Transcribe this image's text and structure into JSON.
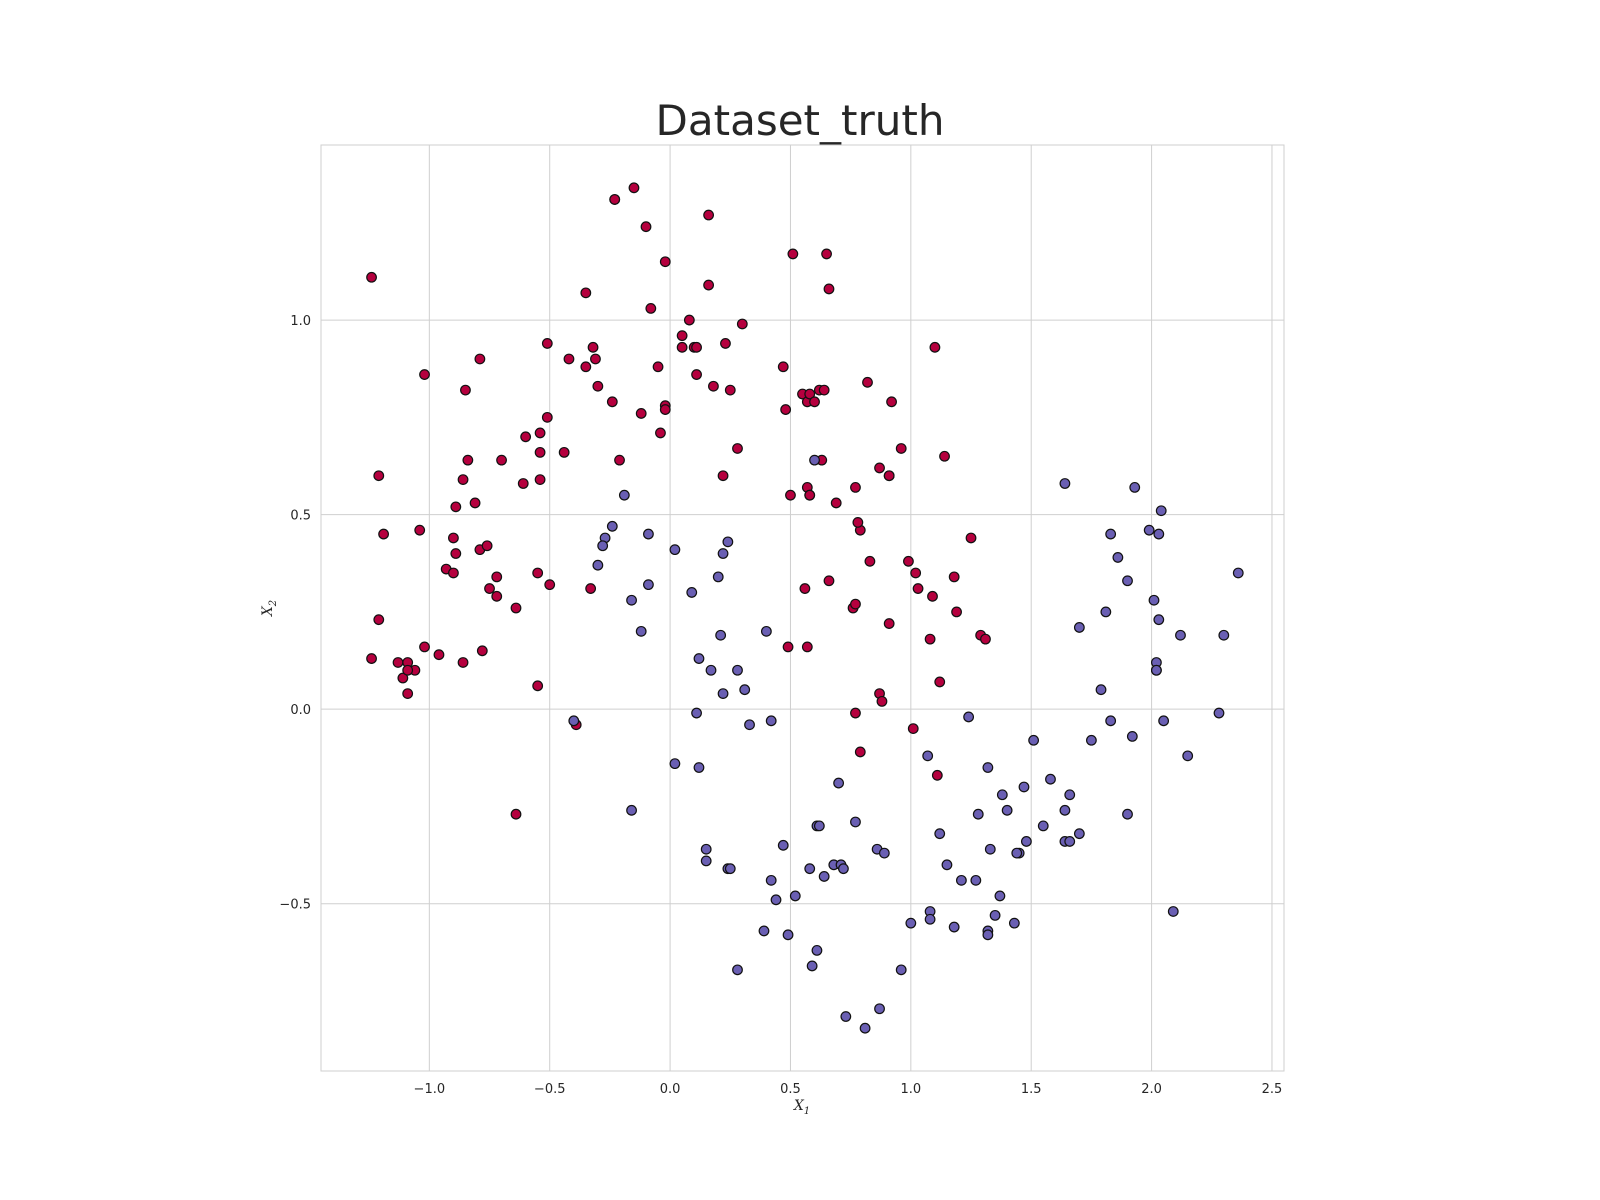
{
  "chart_data": {
    "type": "scatter",
    "title": "Dataset_truth",
    "xlabel": "X",
    "xlabel_sub": "1",
    "ylabel": "X",
    "ylabel_sub": "2",
    "xlim": [
      -1.45,
      2.55
    ],
    "ylim": [
      -0.93,
      1.45
    ],
    "xticks": [
      -1.0,
      -0.5,
      0.0,
      0.5,
      1.0,
      1.5,
      2.0,
      2.5
    ],
    "xtick_labels": [
      "−1.0",
      "−0.5",
      "0.0",
      "0.5",
      "1.0",
      "1.5",
      "2.0",
      "2.5"
    ],
    "yticks": [
      -0.5,
      0.0,
      0.5,
      1.0
    ],
    "ytick_labels": [
      "−0.5",
      "0.0",
      "0.5",
      "1.0"
    ],
    "grid": true,
    "colors": {
      "class_0": "#b5003e",
      "class_1": "#6a5fb3"
    },
    "series": [
      {
        "x": [
          -1.24,
          -1.21,
          -1.19,
          -1.21,
          -1.24,
          -1.13,
          -1.11,
          -1.09,
          -1.09,
          -1.06,
          -1.09,
          -1.02,
          -1.04,
          -1.02,
          -0.96,
          -0.93,
          -0.9,
          -0.89,
          -0.9,
          -0.89,
          -0.86,
          -0.86,
          -0.85,
          -0.84,
          -0.81,
          -0.79,
          -0.78,
          -0.79,
          -0.76,
          -0.75,
          -0.72,
          -0.72,
          -0.7,
          -0.64,
          -0.61,
          -0.6,
          -0.55,
          -0.54,
          -0.54,
          -0.51,
          -0.5,
          -0.51,
          -0.54,
          -0.42,
          -0.44,
          -0.35,
          -0.35,
          -0.32,
          -0.31,
          -0.3,
          -0.24,
          -0.23,
          -0.23,
          -0.21,
          -0.33,
          -0.15,
          -0.12,
          -0.1,
          -0.08,
          -0.05,
          -0.04,
          -0.02,
          -0.02,
          0.05,
          0.05,
          0.08,
          0.1,
          0.11,
          0.16,
          0.16,
          0.18,
          0.22,
          0.23,
          0.25,
          0.28,
          0.3,
          0.47,
          0.48,
          0.5,
          0.51,
          0.55,
          0.57,
          0.58,
          0.6,
          0.62,
          0.64,
          0.65,
          0.66,
          0.57,
          0.63,
          0.69,
          0.77,
          0.79,
          0.82,
          0.83,
          0.87,
          0.91,
          0.92,
          0.96,
          0.99,
          1.02,
          1.03,
          1.09,
          1.1,
          1.14,
          1.18,
          1.19,
          1.25,
          1.29,
          1.31,
          0.49,
          0.57,
          0.76,
          0.77,
          0.78,
          0.91,
          0.91,
          0.56,
          0.58,
          1.08,
          1.12,
          0.87,
          0.88,
          1.01,
          1.11,
          0.77,
          0.79,
          -0.55,
          -0.64,
          -0.39,
          -0.02,
          0.11,
          0.58,
          0.66
        ],
        "y": [
          1.11,
          0.6,
          0.45,
          0.23,
          0.13,
          0.12,
          0.08,
          0.12,
          0.04,
          0.1,
          0.1,
          0.16,
          0.46,
          0.86,
          0.14,
          0.36,
          0.44,
          0.4,
          0.35,
          0.52,
          0.59,
          0.12,
          0.82,
          0.64,
          0.53,
          0.9,
          0.15,
          0.41,
          0.42,
          0.31,
          0.29,
          0.34,
          0.64,
          0.26,
          0.58,
          0.7,
          0.35,
          0.59,
          0.66,
          0.75,
          0.32,
          0.94,
          0.71,
          0.9,
          0.66,
          1.07,
          0.88,
          0.93,
          0.9,
          0.83,
          0.79,
          1.31,
          1.31,
          0.64,
          0.31,
          1.34,
          0.76,
          1.24,
          1.03,
          0.88,
          0.71,
          0.78,
          1.15,
          0.93,
          0.96,
          1.0,
          0.93,
          0.86,
          1.27,
          1.09,
          0.83,
          0.6,
          0.94,
          0.82,
          0.67,
          0.99,
          0.88,
          0.77,
          0.55,
          1.17,
          0.81,
          0.79,
          0.81,
          0.79,
          0.82,
          0.82,
          1.17,
          1.08,
          0.57,
          0.64,
          0.53,
          0.57,
          0.46,
          0.84,
          0.38,
          0.62,
          0.6,
          0.79,
          0.67,
          0.38,
          0.35,
          0.31,
          0.29,
          0.93,
          0.65,
          0.34,
          0.25,
          0.44,
          0.19,
          0.18,
          0.16,
          0.16,
          0.26,
          0.27,
          0.48,
          0.22,
          0.6,
          0.31,
          0.55,
          0.18,
          0.07,
          0.04,
          0.02,
          -0.05,
          -0.17,
          -0.01,
          -0.11,
          0.06,
          -0.27,
          -0.04,
          0.77,
          0.93,
          0.55,
          0.33
        ]
      },
      {
        "x": [
          -0.4,
          -0.24,
          -0.27,
          -0.28,
          -0.3,
          -0.19,
          -0.16,
          -0.16,
          -0.12,
          -0.09,
          -0.09,
          0.02,
          0.09,
          0.12,
          0.11,
          0.12,
          0.17,
          0.2,
          0.21,
          0.22,
          0.22,
          0.24,
          0.24,
          0.28,
          0.33,
          0.31,
          0.4,
          0.42,
          0.25,
          0.15,
          0.15,
          0.02,
          0.47,
          0.52,
          0.42,
          0.44,
          0.39,
          0.49,
          0.58,
          0.61,
          0.59,
          0.61,
          0.62,
          0.64,
          0.68,
          0.71,
          0.72,
          0.7,
          0.77,
          0.86,
          0.89,
          0.73,
          0.81,
          0.87,
          0.96,
          1.0,
          1.07,
          1.08,
          1.08,
          1.18,
          1.12,
          1.15,
          1.21,
          1.27,
          1.28,
          1.32,
          1.33,
          1.35,
          1.37,
          1.38,
          1.4,
          1.43,
          1.45,
          1.47,
          1.48,
          1.51,
          1.55,
          1.58,
          1.64,
          1.64,
          1.66,
          1.66,
          1.7,
          1.75,
          1.79,
          1.83,
          1.9,
          1.92,
          2.02,
          2.02,
          2.05,
          2.09,
          2.15,
          2.28,
          1.93,
          1.99,
          1.9,
          1.86,
          1.83,
          1.81,
          1.7,
          1.64,
          2.04,
          2.03,
          2.01,
          2.02,
          2.03,
          2.12,
          2.3,
          2.36,
          1.32,
          1.32,
          1.44,
          1.24,
          0.28,
          0.6
        ],
        "y": [
          -0.03,
          0.47,
          0.44,
          0.42,
          0.37,
          0.55,
          0.28,
          -0.26,
          0.2,
          0.45,
          0.32,
          0.41,
          0.3,
          0.13,
          -0.01,
          -0.15,
          0.1,
          0.34,
          0.19,
          0.04,
          0.4,
          0.43,
          -0.41,
          0.1,
          -0.04,
          0.05,
          0.2,
          -0.03,
          -0.41,
          -0.36,
          -0.39,
          -0.14,
          -0.35,
          -0.48,
          -0.44,
          -0.49,
          -0.57,
          -0.58,
          -0.41,
          -0.62,
          -0.66,
          -0.3,
          -0.3,
          -0.43,
          -0.4,
          -0.4,
          -0.41,
          -0.19,
          -0.29,
          -0.36,
          -0.37,
          -0.79,
          -0.82,
          -0.77,
          -0.67,
          -0.55,
          -0.12,
          -0.52,
          -0.54,
          -0.56,
          -0.32,
          -0.4,
          -0.44,
          -0.44,
          -0.27,
          -0.15,
          -0.36,
          -0.53,
          -0.48,
          -0.22,
          -0.26,
          -0.55,
          -0.37,
          -0.2,
          -0.34,
          -0.08,
          -0.3,
          -0.18,
          -0.26,
          -0.34,
          -0.34,
          -0.22,
          -0.32,
          -0.08,
          0.05,
          -0.03,
          -0.27,
          -0.07,
          0.12,
          0.1,
          -0.03,
          -0.52,
          -0.12,
          -0.01,
          0.57,
          0.46,
          0.33,
          0.39,
          0.45,
          0.25,
          0.21,
          0.58,
          0.51,
          0.45,
          0.28,
          0.1,
          0.23,
          0.19,
          0.19,
          0.35,
          -0.57,
          -0.58,
          -0.37,
          -0.02,
          -0.67,
          0.64
        ]
      }
    ]
  }
}
